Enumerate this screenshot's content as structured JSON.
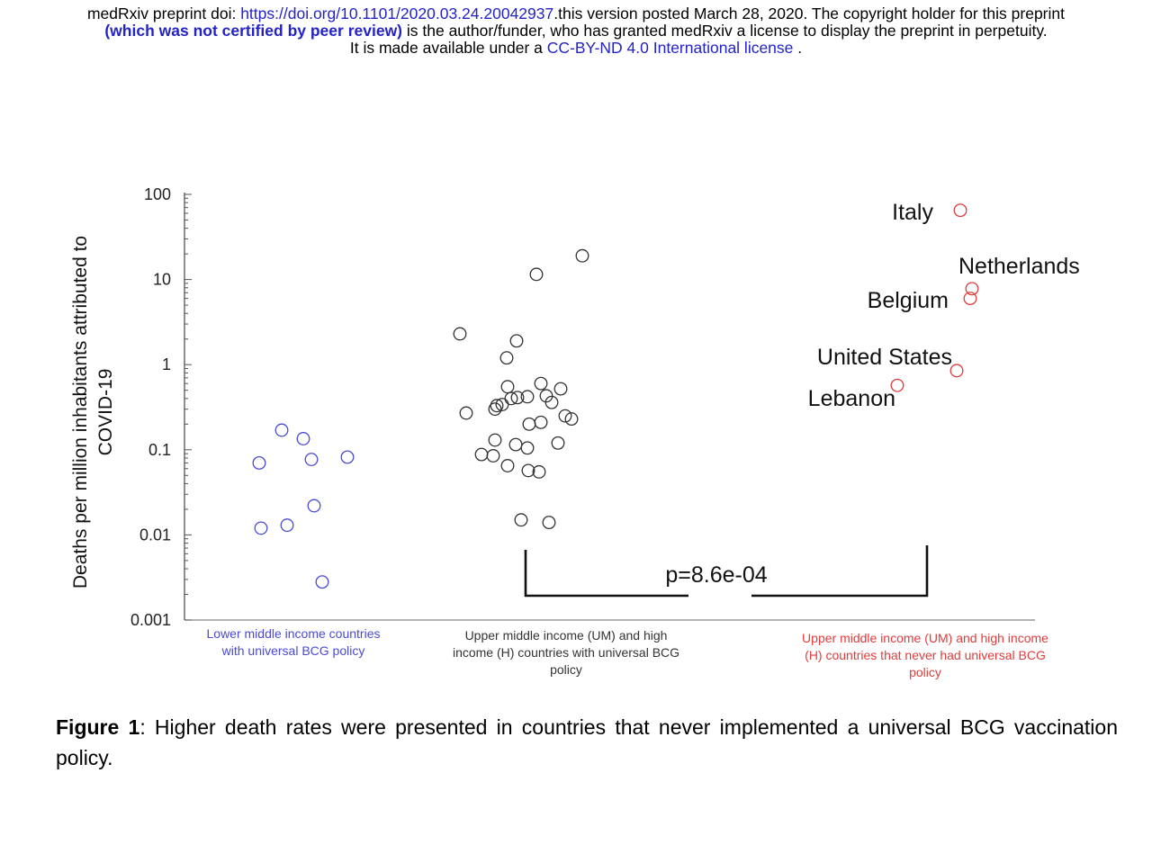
{
  "header": {
    "line1_prefix": "medRxiv preprint doi: ",
    "doi_link": "https://doi.org/10.1101/2020.03.24.20042937",
    "line1_suffix": ".this version posted March 28, 2020. The copyright holder for this preprint",
    "line2_bold": "(which was not certified by peer review)",
    "line2_rest": " is the author/funder, who has granted medRxiv a license to display the preprint in perpetuity.",
    "line3_prefix": "It is made available under a ",
    "license_link": "CC-BY-ND 4.0 International license",
    "line3_suffix": " ."
  },
  "colors": {
    "blue": "#4a4ad6",
    "black": "#333333",
    "red": "#e03c3c"
  },
  "chart_data": {
    "type": "scatter",
    "ylabel": "Deaths per million inhabitants attributed to COVID-19",
    "ylabel_lines": [
      "Deaths per million inhabitants attributed to",
      "COVID-19"
    ],
    "yscale": "log",
    "ylim": [
      0.001,
      100
    ],
    "yticks": [
      {
        "value": 100,
        "label": "100"
      },
      {
        "value": 10,
        "label": "10"
      },
      {
        "value": 1,
        "label": "1"
      },
      {
        "value": 0.1,
        "label": "0.1"
      },
      {
        "value": 0.01,
        "label": "0.01"
      },
      {
        "value": 0.001,
        "label": "0.001"
      }
    ],
    "groups": [
      {
        "label_lines": [
          "Lower middle income countries",
          "with universal BCG policy"
        ],
        "color": "#4a4ad6",
        "points": [
          0.17,
          0.135,
          0.07,
          0.077,
          0.082,
          0.022,
          0.013,
          0.012,
          0.0028
        ]
      },
      {
        "label_lines": [
          "Upper middle income (UM)  and high",
          "income (H) countries with universal BCG",
          "policy"
        ],
        "color": "#333333",
        "points": [
          19,
          11.5,
          2.3,
          1.9,
          1.2,
          0.6,
          0.55,
          0.52,
          0.43,
          0.42,
          0.41,
          0.4,
          0.36,
          0.34,
          0.33,
          0.3,
          0.27,
          0.25,
          0.23,
          0.21,
          0.2,
          0.13,
          0.12,
          0.115,
          0.105,
          0.088,
          0.085,
          0.065,
          0.057,
          0.055,
          0.015,
          0.014
        ]
      },
      {
        "label_lines": [
          "Upper middle income (UM)  and high income",
          "(H) countries that never had universal BCG",
          "policy"
        ],
        "color": "#e03c3c",
        "points": [
          {
            "name": "Italy",
            "value": 65
          },
          {
            "name": "Netherlands",
            "value": 7.8
          },
          {
            "name": "Belgium",
            "value": 6
          },
          {
            "name": "United States",
            "value": 0.85
          },
          {
            "name": "Lebanon",
            "value": 0.57
          }
        ]
      }
    ],
    "annotation": "p=8.6e-04"
  },
  "caption": {
    "label": "Figure 1",
    "text": ":  Higher death rates were presented in countries that never implemented a universal BCG vaccination policy."
  }
}
